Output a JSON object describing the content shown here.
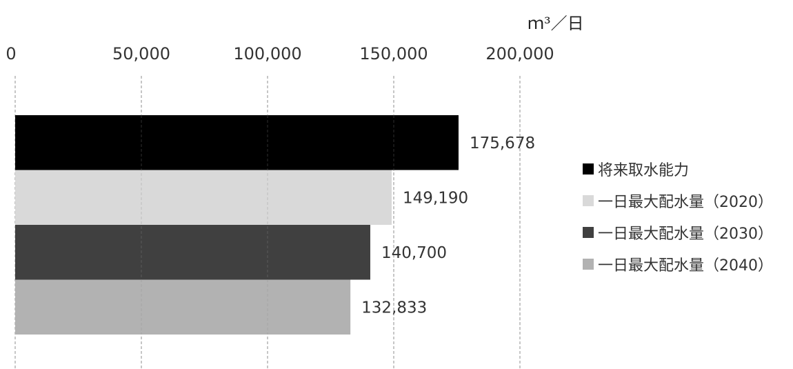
{
  "unit_label": "ｍ³／日",
  "chart_data": {
    "type": "bar",
    "orientation": "horizontal",
    "xlim": [
      0,
      200000
    ],
    "x_ticks": [
      "0",
      "50,000",
      "100,000",
      "150,000",
      "200,000"
    ],
    "x_tick_values": [
      0,
      50000,
      100000,
      150000,
      200000
    ],
    "x_axis_position": "top",
    "grid": "vertical dashed",
    "legend_position": "right",
    "series": [
      {
        "name": "将来取水能力",
        "value": 175678,
        "label": "175,678",
        "color": "#000000"
      },
      {
        "name": "一日最大配水量（2020）",
        "value": 149190,
        "label": "149,190",
        "color": "#d9d9d9"
      },
      {
        "name": "一日最大配水量（2030）",
        "value": 140700,
        "label": "140,700",
        "color": "#404040"
      },
      {
        "name": "一日最大配水量（2040）",
        "value": 132833,
        "label": "132,833",
        "color": "#b2b2b2"
      }
    ]
  }
}
